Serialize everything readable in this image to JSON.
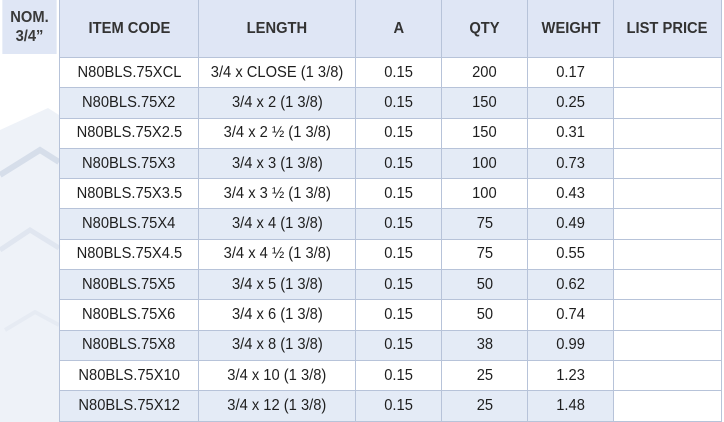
{
  "nom": {
    "line1": "NOM.",
    "line2": "3/4”"
  },
  "columns": [
    "ITEM CODE",
    "LENGTH",
    "A",
    "QTY",
    "WEIGHT",
    "LIST PRICE"
  ],
  "rows": [
    {
      "item_code": "N80BLS.75XCL",
      "length": "3/4 x CLOSE (1 3/8)",
      "a": "0.15",
      "qty": "200",
      "weight": "0.17",
      "list_price": ""
    },
    {
      "item_code": "N80BLS.75X2",
      "length": "3/4 x 2 (1 3/8)",
      "a": "0.15",
      "qty": "150",
      "weight": "0.25",
      "list_price": ""
    },
    {
      "item_code": "N80BLS.75X2.5",
      "length": "3/4 x 2 ½ (1 3/8)",
      "a": "0.15",
      "qty": "150",
      "weight": "0.31",
      "list_price": ""
    },
    {
      "item_code": "N80BLS.75X3",
      "length": "3/4 x 3 (1 3/8)",
      "a": "0.15",
      "qty": "100",
      "weight": "0.73",
      "list_price": ""
    },
    {
      "item_code": "N80BLS.75X3.5",
      "length": "3/4 x 3 ½ (1 3/8)",
      "a": "0.15",
      "qty": "100",
      "weight": "0.43",
      "list_price": ""
    },
    {
      "item_code": "N80BLS.75X4",
      "length": "3/4 x 4 (1 3/8)",
      "a": "0.15",
      "qty": "75",
      "weight": "0.49",
      "list_price": ""
    },
    {
      "item_code": "N80BLS.75X4.5",
      "length": "3/4 x 4 ½ (1 3/8)",
      "a": "0.15",
      "qty": "75",
      "weight": "0.55",
      "list_price": ""
    },
    {
      "item_code": "N80BLS.75X5",
      "length": "3/4 x 5 (1 3/8)",
      "a": "0.15",
      "qty": "50",
      "weight": "0.62",
      "list_price": ""
    },
    {
      "item_code": "N80BLS.75X6",
      "length": "3/4 x 6 (1 3/8)",
      "a": "0.15",
      "qty": "50",
      "weight": "0.74",
      "list_price": ""
    },
    {
      "item_code": "N80BLS.75X8",
      "length": "3/4 x 8 (1 3/8)",
      "a": "0.15",
      "qty": "38",
      "weight": "0.99",
      "list_price": ""
    },
    {
      "item_code": "N80BLS.75X10",
      "length": "3/4 x 10 (1 3/8)",
      "a": "0.15",
      "qty": "25",
      "weight": "1.23",
      "list_price": ""
    },
    {
      "item_code": "N80BLS.75X12",
      "length": "3/4 x 12 (1 3/8)",
      "a": "0.15",
      "qty": "25",
      "weight": "1.48",
      "list_price": ""
    }
  ],
  "colors": {
    "header_bg": "#dfe6f5",
    "stripe_bg": "#e4ebf6",
    "border": "#b7c3d9"
  }
}
